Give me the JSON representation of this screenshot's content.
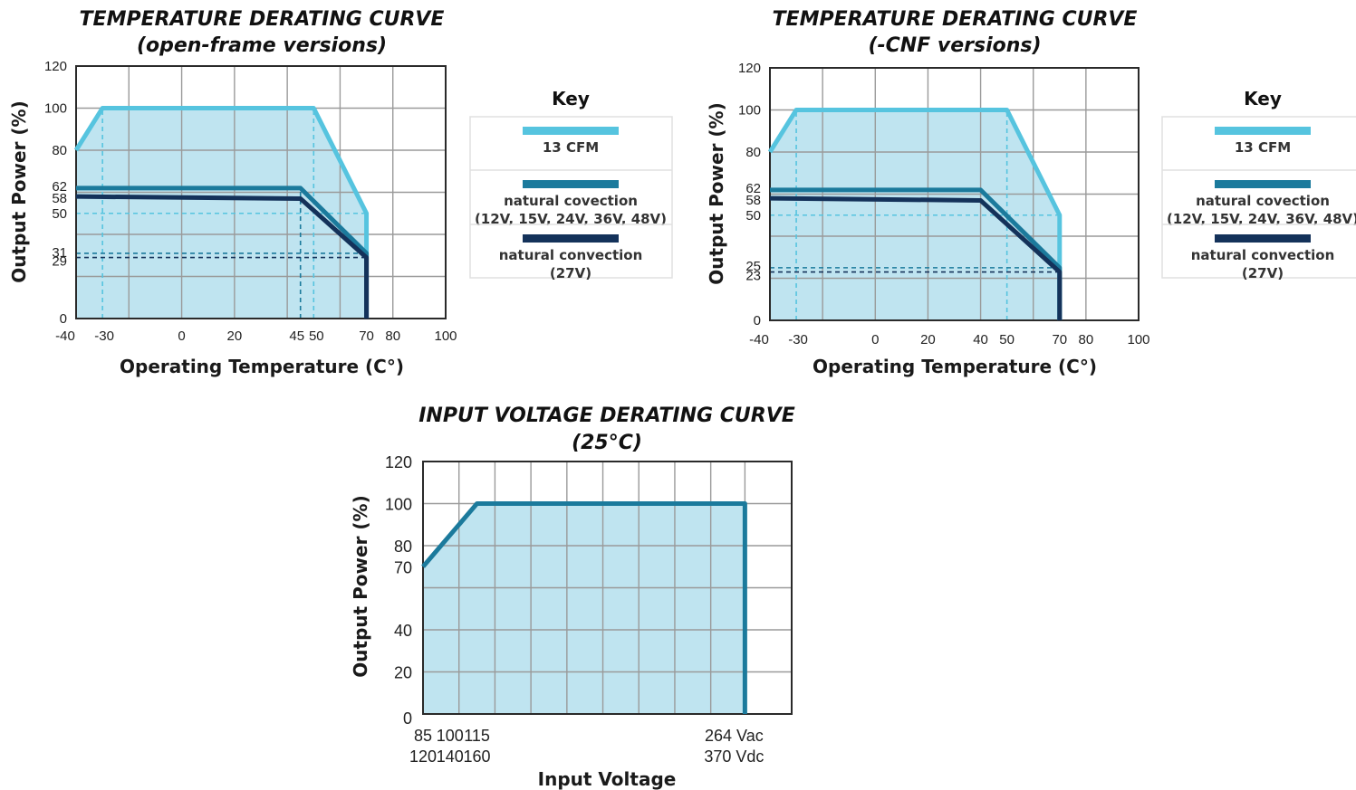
{
  "colors": {
    "cfm": "#56C4DF",
    "natural": "#1B7A9C",
    "natural27": "#14325A",
    "fill": "#BFE4F0"
  },
  "chart_data": [
    {
      "type": "line",
      "title": "TEMPERATURE DERATING CURVE",
      "subtitle": "(open-frame versions)",
      "xlabel": "Operating Temperature (C°)",
      "ylabel": "Output Power (%)",
      "xlim": [
        -40,
        100
      ],
      "ylim": [
        0,
        120
      ],
      "xticks": [
        "-40",
        "-30",
        "0",
        "20",
        "45",
        "50",
        "70",
        "80",
        "100"
      ],
      "xtick_values": [
        -40,
        -30,
        0,
        20,
        45,
        50,
        70,
        80,
        100
      ],
      "yticks": [
        "0",
        "29",
        "31",
        "50",
        "58",
        "62",
        "80",
        "100",
        "120"
      ],
      "ytick_values": [
        0,
        29,
        31,
        50,
        58,
        62,
        80,
        100,
        120
      ],
      "grid": true,
      "series": [
        {
          "name": "13 CFM",
          "color_key": "cfm",
          "x": [
            -40,
            -30,
            50,
            70,
            70
          ],
          "y": [
            80,
            100,
            100,
            50,
            0
          ]
        },
        {
          "name": "natural covection (12V, 15V, 24V, 36V, 48V)",
          "color_key": "natural",
          "x": [
            -40,
            45,
            70,
            70
          ],
          "y": [
            62,
            62,
            31,
            0
          ]
        },
        {
          "name": "natural convection (27V)",
          "color_key": "natural27",
          "x": [
            -40,
            45,
            70,
            70
          ],
          "y": [
            58,
            57,
            29,
            0
          ]
        }
      ],
      "key": {
        "heading": "Key",
        "items": [
          {
            "color_key": "cfm",
            "lines": [
              "13 CFM"
            ]
          },
          {
            "color_key": "natural",
            "lines": [
              "natural covection",
              "(12V, 15V, 24V, 36V, 48V)"
            ]
          },
          {
            "color_key": "natural27",
            "lines": [
              "natural convection",
              "(27V)"
            ]
          }
        ]
      },
      "guides": [
        {
          "color_key": "cfm",
          "type": "v",
          "x": -30,
          "y": [
            0,
            100
          ]
        },
        {
          "color_key": "cfm",
          "type": "v",
          "x": 50,
          "y": [
            0,
            100
          ]
        },
        {
          "color_key": "cfm",
          "type": "h",
          "y": 50,
          "x": [
            -40,
            70
          ]
        },
        {
          "color_key": "natural",
          "type": "v",
          "x": 45,
          "y": [
            0,
            62
          ]
        },
        {
          "color_key": "natural",
          "type": "h",
          "y": 31,
          "x": [
            -40,
            70
          ]
        },
        {
          "color_key": "natural27",
          "type": "h",
          "y": 29,
          "x": [
            -40,
            70
          ]
        }
      ]
    },
    {
      "type": "line",
      "title": "TEMPERATURE DERATING CURVE",
      "subtitle": "(-CNF versions)",
      "xlabel": "Operating Temperature (C°)",
      "ylabel": "Output Power (%)",
      "xlim": [
        -40,
        100
      ],
      "ylim": [
        0,
        120
      ],
      "xticks": [
        "-40",
        "-30",
        "0",
        "20",
        "40",
        "50",
        "70",
        "80",
        "100"
      ],
      "xtick_values": [
        -40,
        -30,
        0,
        20,
        40,
        50,
        70,
        80,
        100
      ],
      "yticks": [
        "0",
        "23",
        "25",
        "50",
        "58",
        "62",
        "80",
        "100",
        "120"
      ],
      "ytick_values": [
        0,
        23,
        25,
        50,
        58,
        62,
        80,
        100,
        120
      ],
      "grid": true,
      "series": [
        {
          "name": "13 CFM",
          "color_key": "cfm",
          "x": [
            -40,
            -30,
            50,
            70,
            70
          ],
          "y": [
            80,
            100,
            100,
            50,
            0
          ]
        },
        {
          "name": "natural covection (12V, 15V, 24V, 36V, 48V)",
          "color_key": "natural",
          "x": [
            -40,
            40,
            70,
            70
          ],
          "y": [
            62,
            62,
            25,
            0
          ]
        },
        {
          "name": "natural convection (27V)",
          "color_key": "natural27",
          "x": [
            -40,
            40,
            70,
            70
          ],
          "y": [
            58,
            57,
            23,
            0
          ]
        }
      ],
      "key": {
        "heading": "Key",
        "items": [
          {
            "color_key": "cfm",
            "lines": [
              "13 CFM"
            ]
          },
          {
            "color_key": "natural",
            "lines": [
              "natural covection",
              "(12V, 15V, 24V, 36V, 48V)"
            ]
          },
          {
            "color_key": "natural27",
            "lines": [
              "natural convection",
              "(27V)"
            ]
          }
        ]
      },
      "guides": [
        {
          "color_key": "cfm",
          "type": "v",
          "x": -30,
          "y": [
            0,
            100
          ]
        },
        {
          "color_key": "cfm",
          "type": "v",
          "x": 50,
          "y": [
            0,
            100
          ]
        },
        {
          "color_key": "cfm",
          "type": "h",
          "y": 50,
          "x": [
            -40,
            70
          ]
        },
        {
          "color_key": "natural",
          "type": "h",
          "y": 25,
          "x": [
            -40,
            70
          ]
        },
        {
          "color_key": "natural27",
          "type": "h",
          "y": 23,
          "x": [
            -40,
            70
          ]
        }
      ]
    },
    {
      "type": "line",
      "title": "INPUT VOLTAGE DERATING CURVE",
      "subtitle": "(25°C)",
      "xlabel": "Input Voltage",
      "ylabel": "Output Power (%)",
      "xlim": [
        85,
        290
      ],
      "ylim": [
        0,
        120
      ],
      "xticks": [
        [
          "85",
          "120"
        ],
        [
          "100",
          "140"
        ],
        [
          "115",
          "160"
        ],
        [
          "264 Vac",
          "370 Vdc"
        ]
      ],
      "xtick_values": [
        85,
        100,
        115,
        264
      ],
      "yticks": [
        "0",
        "20",
        "40",
        "70",
        "80",
        "100",
        "120"
      ],
      "ytick_values": [
        0,
        20,
        40,
        70,
        80,
        100,
        120
      ],
      "grid": true,
      "series": [
        {
          "color_key": "natural",
          "x": [
            85,
            115,
            264,
            264
          ],
          "y": [
            70,
            100,
            100,
            0
          ]
        }
      ],
      "guides": []
    }
  ]
}
